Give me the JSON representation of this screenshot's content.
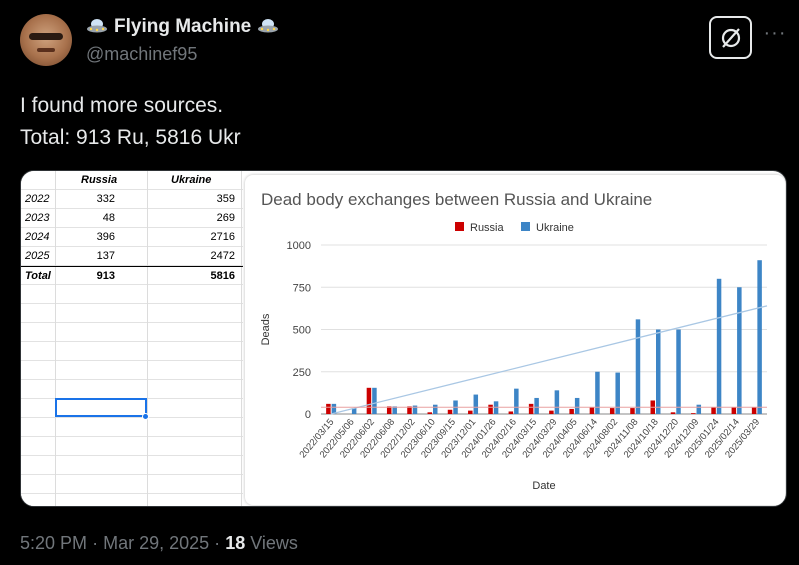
{
  "author": {
    "display_name": "Flying Machine",
    "handle": "@machinef95"
  },
  "tweet": {
    "line1": "I found more sources.",
    "line2": "Total: 913 Ru, 5816 Ukr"
  },
  "footer": {
    "time": "5:20 PM",
    "sep1": "·",
    "date": "Mar 29, 2025",
    "sep2": "·",
    "views_count": "18",
    "views_label": "Views"
  },
  "icons": {
    "grok": "grok-icon",
    "more": "more-icon",
    "ufo": "ufo-emoji-icon"
  },
  "spreadsheet": {
    "headers": [
      "",
      "Russia",
      "Ukraine"
    ],
    "rows": [
      {
        "year": "2022",
        "russia": "332",
        "ukraine": "359"
      },
      {
        "year": "2023",
        "russia": "48",
        "ukraine": "269"
      },
      {
        "year": "2024",
        "russia": "396",
        "ukraine": "2716"
      },
      {
        "year": "2025",
        "russia": "137",
        "ukraine": "2472"
      }
    ],
    "total": {
      "label": "Total",
      "russia": "913",
      "ukraine": "5816"
    }
  },
  "chart_data": {
    "type": "bar",
    "title": "Dead body exchanges between Russia and Ukraine",
    "xlabel": "Date",
    "ylabel": "Deads",
    "ylim": [
      0,
      1000
    ],
    "yticks": [
      0,
      250,
      500,
      750,
      1000
    ],
    "grid": true,
    "legend": "top",
    "colors": {
      "Russia": "#cc0000",
      "Ukraine": "#3d85c6",
      "trend": "#a9c7e4"
    },
    "categories": [
      "2022/03/15",
      "2022/05/06",
      "2022/06/02",
      "2022/06/08",
      "2022/12/02",
      "2023/06/10",
      "2023/09/15",
      "2023/12/01",
      "2024/01/26",
      "2024/02/16",
      "2024/03/15",
      "2024/03/29",
      "2024/04/05",
      "2024/06/14",
      "2024/08/02",
      "2024/11/08",
      "2024/10/18",
      "2024/12/20",
      "2024/12/09",
      "2025/01/24",
      "2025/02/14",
      "2025/03/29"
    ],
    "series": [
      {
        "name": "Russia",
        "values": [
          60,
          0,
          155,
          45,
          45,
          10,
          25,
          20,
          55,
          15,
          60,
          20,
          30,
          40,
          35,
          35,
          80,
          10,
          5,
          40,
          40,
          40
        ]
      },
      {
        "name": "Ukraine",
        "values": [
          60,
          35,
          155,
          45,
          50,
          55,
          80,
          115,
          75,
          150,
          95,
          140,
          95,
          250,
          245,
          560,
          500,
          500,
          55,
          800,
          750,
          910
        ]
      }
    ],
    "trendline": {
      "series": "Ukraine",
      "start": 0,
      "end": 640
    }
  }
}
